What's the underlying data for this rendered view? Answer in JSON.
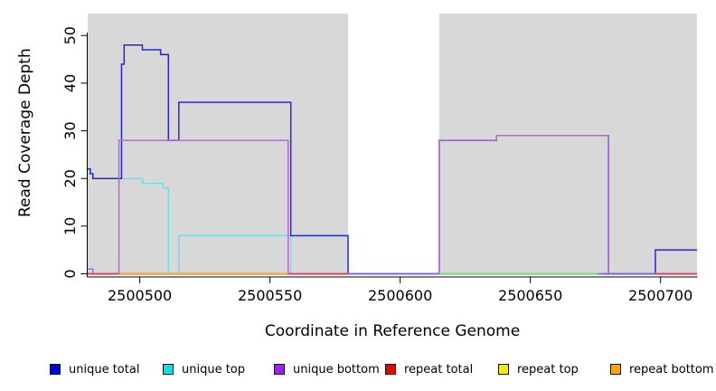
{
  "figure": {
    "xlabel": "Coordinate in Reference Genome",
    "ylabel": "Read Coverage Depth"
  },
  "legend": [
    {
      "label": "unique total",
      "color": "#0000e0"
    },
    {
      "label": "unique top",
      "color": "#00e5e5"
    },
    {
      "label": "unique bottom",
      "color": "#a020f0"
    },
    {
      "label": "repeat total",
      "color": "#ee0000"
    },
    {
      "label": "repeat top",
      "color": "#f0f000"
    },
    {
      "label": "repeat bottom",
      "color": "#ffa500"
    }
  ],
  "chart_data": {
    "type": "line",
    "step": true,
    "title": "",
    "xlabel": "Coordinate in Reference Genome",
    "ylabel": "Read Coverage Depth",
    "xlim": [
      2500480,
      2500714
    ],
    "ylim": [
      0,
      54.6
    ],
    "xticks": [
      2500500,
      2500550,
      2500600,
      2500650,
      2500700
    ],
    "yticks": [
      0,
      10,
      20,
      30,
      40,
      50
    ],
    "grid": false,
    "legend_position": "bottom",
    "panel_background": "#ffffff",
    "shaded_regions": {
      "color": "#d8d8d8",
      "ranges": [
        [
          2500480,
          2500580
        ],
        [
          2500615,
          2500714
        ]
      ]
    },
    "series": [
      {
        "name": "repeat top",
        "line_color": "#e8e84a",
        "end": 2500558,
        "points": [
          [
            2500480,
            0
          ]
        ]
      },
      {
        "name": "repeat bottom",
        "line_color": "#ff9e2a",
        "end": 2500557,
        "points": [
          [
            2500492,
            0
          ]
        ]
      },
      {
        "name": "repeat total",
        "line_color": "#d8405c",
        "end": 2500714,
        "points": [
          [
            2500480,
            0
          ]
        ]
      },
      {
        "name": "unique top",
        "line_color": "#6ce0e6",
        "end": 2500714,
        "points": [
          [
            2500480,
            21
          ],
          [
            2500482,
            20
          ],
          [
            2500501,
            19
          ],
          [
            2500509,
            18
          ],
          [
            2500511,
            0
          ],
          [
            2500515,
            8
          ],
          [
            2500558,
            0
          ]
        ]
      },
      {
        "name": "unique total",
        "line_color": "#2626d8",
        "end": 2500714,
        "points": [
          [
            2500480,
            22
          ],
          [
            2500481,
            21
          ],
          [
            2500482,
            20
          ],
          [
            2500493,
            44
          ],
          [
            2500494,
            48
          ],
          [
            2500501,
            47
          ],
          [
            2500508,
            46
          ],
          [
            2500511,
            28
          ],
          [
            2500515,
            36
          ],
          [
            2500558,
            8
          ],
          [
            2500580,
            0
          ],
          [
            2500615,
            28
          ],
          [
            2500637,
            29
          ],
          [
            2500680,
            0
          ],
          [
            2500698,
            5
          ]
        ]
      },
      {
        "name": "unique bottom",
        "line_color": "#b466da",
        "end": 2500714,
        "points": [
          [
            2500480,
            1
          ],
          [
            2500482,
            0
          ],
          [
            2500492,
            28
          ],
          [
            2500557,
            0
          ],
          [
            2500615,
            28
          ],
          [
            2500637,
            29
          ],
          [
            2500680,
            0
          ]
        ]
      }
    ],
    "zero_line_segments": [
      {
        "from": 2500480,
        "to": 2500492,
        "color": "#d8405c"
      },
      {
        "from": 2500492,
        "to": 2500557,
        "color": "#ff9e2a"
      },
      {
        "from": 2500557,
        "to": 2500580,
        "color": "#d8405c"
      },
      {
        "from": 2500580,
        "to": 2500615,
        "color": "#7b68e8"
      },
      {
        "from": 2500615,
        "to": 2500676,
        "color": "#7cd87c"
      },
      {
        "from": 2500676,
        "to": 2500698,
        "color": "#7b68e8"
      },
      {
        "from": 2500698,
        "to": 2500714,
        "color": "#d8405c"
      }
    ]
  }
}
